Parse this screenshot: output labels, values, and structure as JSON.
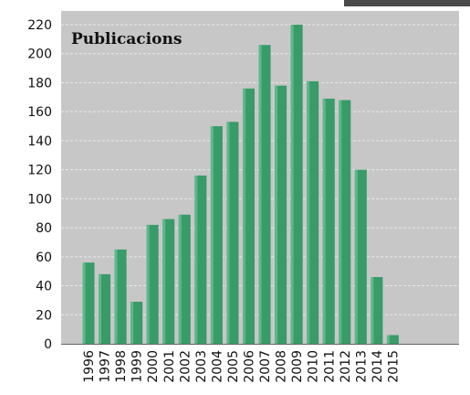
{
  "chart_data": {
    "type": "bar",
    "title": "Publicacions",
    "xlabel": "",
    "ylabel": "",
    "categories": [
      "1996",
      "1997",
      "1998",
      "1999",
      "2000",
      "2001",
      "2002",
      "2003",
      "2004",
      "2005",
      "2006",
      "2007",
      "2008",
      "2009",
      "2010",
      "2011",
      "2012",
      "2013",
      "2014",
      "2015"
    ],
    "values": [
      56,
      48,
      65,
      29,
      82,
      86,
      89,
      116,
      150,
      153,
      176,
      206,
      178,
      220,
      181,
      169,
      168,
      120,
      46,
      6
    ],
    "ylim": [
      0,
      220
    ],
    "yticks": [
      "0",
      "20",
      "40",
      "60",
      "80",
      "100",
      "120",
      "140",
      "160",
      "180",
      "200",
      "220"
    ],
    "grid": true,
    "colors": {
      "bar": "#3a9a6a",
      "bar_highlight": "#5cb888",
      "plot_background": "#c7c7c7",
      "grid": "#e9e9e9"
    }
  }
}
